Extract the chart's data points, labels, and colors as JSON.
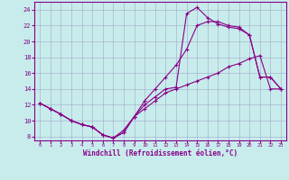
{
  "xlabel": "Windchill (Refroidissement éolien,°C)",
  "xlim": [
    -0.5,
    23.5
  ],
  "ylim": [
    7.5,
    25
  ],
  "xticks": [
    0,
    1,
    2,
    3,
    4,
    5,
    6,
    7,
    8,
    9,
    10,
    11,
    12,
    13,
    14,
    15,
    16,
    17,
    18,
    19,
    20,
    21,
    22,
    23
  ],
  "yticks": [
    8,
    10,
    12,
    14,
    16,
    18,
    20,
    22,
    24
  ],
  "background_color": "#c8ecec",
  "line_color": "#880088",
  "grid_color": "#a0a8c8",
  "line1_x": [
    0,
    1,
    2,
    3,
    4,
    5,
    6,
    7,
    8,
    9,
    10,
    11,
    12,
    13,
    14,
    15,
    16,
    17,
    18,
    19,
    20,
    21,
    22,
    23
  ],
  "line1_y": [
    12.2,
    11.5,
    10.8,
    10.0,
    9.5,
    9.2,
    8.2,
    7.8,
    8.5,
    10.5,
    11.5,
    12.5,
    13.5,
    14.0,
    14.5,
    15.0,
    15.5,
    16.0,
    16.8,
    17.2,
    17.8,
    18.2,
    14.0,
    14.0
  ],
  "line2_x": [
    0,
    1,
    2,
    3,
    4,
    5,
    6,
    7,
    8,
    9,
    10,
    11,
    12,
    13,
    14,
    15,
    16,
    17,
    18,
    19,
    20,
    21,
    22,
    23
  ],
  "line2_y": [
    12.2,
    11.5,
    10.8,
    10.0,
    9.5,
    9.2,
    8.2,
    7.8,
    8.5,
    10.5,
    12.5,
    14.0,
    15.5,
    17.0,
    19.0,
    22.0,
    22.5,
    22.5,
    22.0,
    21.8,
    20.8,
    15.5,
    15.5,
    14.0
  ],
  "line3_x": [
    0,
    1,
    2,
    3,
    4,
    5,
    6,
    7,
    8,
    9,
    10,
    11,
    12,
    13,
    14,
    15,
    16,
    17,
    18,
    19,
    20,
    21,
    22,
    23
  ],
  "line3_y": [
    12.2,
    11.5,
    10.8,
    10.0,
    9.5,
    9.2,
    8.2,
    7.8,
    8.8,
    10.5,
    12.0,
    13.0,
    14.0,
    14.2,
    23.5,
    24.3,
    23.0,
    22.2,
    21.8,
    21.6,
    20.8,
    15.5,
    15.5,
    14.0
  ]
}
